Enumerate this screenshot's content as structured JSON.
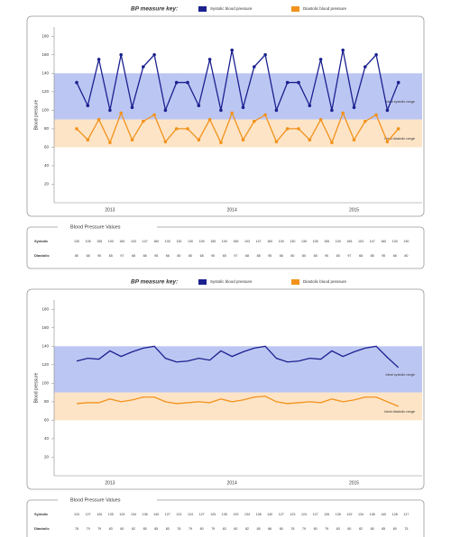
{
  "chart_data": [
    {
      "type": "line",
      "markers": true,
      "key_title": "BP measure key:",
      "y_label": "Blood pressure",
      "categories": [
        null,
        null,
        null,
        "2013",
        null,
        null,
        null,
        null,
        null,
        null,
        null,
        null,
        null,
        null,
        "2014",
        null,
        null,
        null,
        null,
        null,
        null,
        null,
        null,
        null,
        null,
        "2015",
        null,
        null,
        null,
        null
      ],
      "ylim": [
        0,
        190
      ],
      "yticks": [
        20,
        40,
        60,
        80,
        100,
        120,
        140,
        160,
        180
      ],
      "bands": [
        {
          "label": "Ideal systolic range",
          "range": [
            90,
            140
          ],
          "color": "#bcc6f2"
        },
        {
          "label": "Ideal diastolic range",
          "range": [
            60,
            90
          ],
          "color": "#fde4c6"
        }
      ],
      "series": [
        {
          "name": "Systolic blood pressure",
          "color": "#1b2190",
          "values": [
            130,
            105,
            155,
            100,
            160,
            103,
            147,
            160,
            100,
            130,
            130,
            105,
            155,
            100,
            165,
            103,
            147,
            160,
            100,
            130,
            130,
            105,
            155,
            100,
            165,
            103,
            147,
            160,
            100,
            130
          ]
        },
        {
          "name": "Diastolic blood pressure",
          "color": "#f2921c",
          "values": [
            80,
            68,
            90,
            65,
            97,
            68,
            88,
            95,
            66,
            80,
            80,
            68,
            90,
            65,
            97,
            68,
            88,
            95,
            66,
            80,
            80,
            68,
            90,
            65,
            97,
            68,
            88,
            95,
            66,
            80
          ]
        }
      ],
      "table": {
        "title": "Blood Pressure Values",
        "rows": [
          "Systolic",
          "Diastolic"
        ]
      }
    },
    {
      "type": "line",
      "markers": false,
      "key_title": "BP measure key:",
      "y_label": "Blood pressure",
      "categories": [
        null,
        null,
        null,
        "2013",
        null,
        null,
        null,
        null,
        null,
        null,
        null,
        null,
        null,
        null,
        "2014",
        null,
        null,
        null,
        null,
        null,
        null,
        null,
        null,
        null,
        null,
        "2015",
        null,
        null,
        null,
        null
      ],
      "ylim": [
        0,
        190
      ],
      "yticks": [
        20,
        40,
        60,
        80,
        100,
        120,
        140,
        160,
        180
      ],
      "bands": [
        {
          "label": "Ideal systolic range",
          "range": [
            90,
            140
          ],
          "color": "#bcc6f2"
        },
        {
          "label": "Ideal diastolic range",
          "range": [
            60,
            90
          ],
          "color": "#fde4c6"
        }
      ],
      "series": [
        {
          "name": "Systolic blood pressure",
          "color": "#1b2190",
          "values": [
            124,
            127,
            126,
            135,
            129,
            134,
            138,
            140,
            127,
            123,
            124,
            127,
            125,
            135,
            129,
            134,
            138,
            140,
            127,
            123,
            124,
            127,
            126,
            135,
            129,
            134,
            138,
            140,
            128,
            117
          ]
        },
        {
          "name": "Diastolic blood pressure",
          "color": "#f2921c",
          "values": [
            78,
            79,
            79,
            83,
            80,
            82,
            85,
            85,
            80,
            78,
            79,
            80,
            79,
            83,
            80,
            82,
            85,
            86,
            80,
            78,
            79,
            80,
            79,
            83,
            80,
            82,
            85,
            85,
            80,
            75
          ]
        }
      ],
      "table": {
        "title": "Blood Pressure Values",
        "rows": [
          "Systolic",
          "Diastolic"
        ]
      }
    }
  ]
}
